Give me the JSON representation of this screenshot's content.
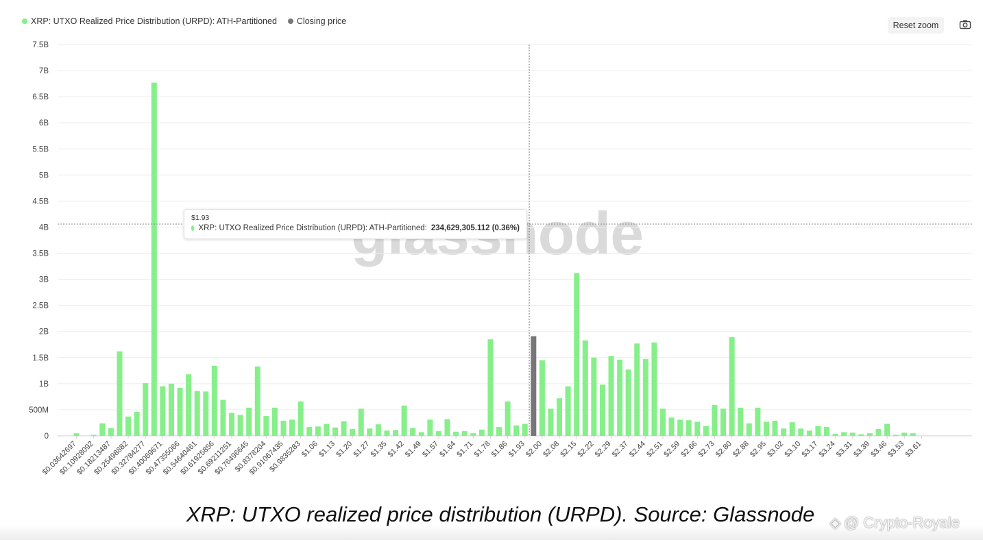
{
  "legend": [
    {
      "label": "XRP: UTXO Realized Price Distribution (URPD): ATH-Partitioned",
      "color": "#86ef8a"
    },
    {
      "label": "Closing price",
      "color": "#777777"
    }
  ],
  "toolbar": {
    "reset_zoom_label": "Reset zoom",
    "camera_icon": "camera-icon"
  },
  "tooltip": {
    "title": "$1.93",
    "series_label": "XRP: UTXO Realized Price Distribution (URPD): ATH-Partitioned:",
    "value": "234,629,305.112 (0.36%)"
  },
  "watermark": "glassnode",
  "caption": "XRP: UTXO realized price distribution (URPD). Source: Glassnode",
  "credit": "@ Crypto-Royale",
  "chart_data": {
    "type": "bar",
    "ylim": [
      0,
      7500000000
    ],
    "ytick_labels": [
      "0",
      "500M",
      "1B",
      "1.5B",
      "2B",
      "2.5B",
      "3B",
      "3.5B",
      "4B",
      "4.5B",
      "5B",
      "5.5B",
      "6B",
      "6.5B",
      "7B",
      "7.5B"
    ],
    "xtick_labels": [
      "$0.03642697",
      "$0.10928092",
      "$0.18213487",
      "$0.25498882",
      "$0.32784277",
      "$0.40069671",
      "$0.47355066",
      "$0.54640461",
      "$0.61925856",
      "$0.69211251",
      "$0.76496645",
      "$0.8378204",
      "$0.91067435",
      "$0.9835283",
      "$1.06",
      "$1.13",
      "$1.20",
      "$1.27",
      "$1.35",
      "$1.42",
      "$1.49",
      "$1.57",
      "$1.64",
      "$1.71",
      "$1.78",
      "$1.86",
      "$1.93",
      "$2.00",
      "$2.08",
      "$2.15",
      "$2.22",
      "$2.29",
      "$2.37",
      "$2.44",
      "$2.51",
      "$2.59",
      "$2.66",
      "$2.73",
      "$2.80",
      "$2.88",
      "$2.95",
      "$3.02",
      "$3.10",
      "$3.17",
      "$3.24",
      "$3.31",
      "$3.39",
      "$3.46",
      "$3.53",
      "$3.61"
    ],
    "xtick_start_index": 1,
    "xtick_step": 2,
    "series": [
      {
        "name": "XRP: UTXO Realized Price Distribution (URPD): ATH-Partitioned",
        "color": "#86ef8a",
        "values": [
          0,
          0.05,
          0,
          0.02,
          0.24,
          0.15,
          1.62,
          0.37,
          0.46,
          1.01,
          6.77,
          0.95,
          1.0,
          0.92,
          1.18,
          0.86,
          0.85,
          1.34,
          0.69,
          0.44,
          0.4,
          0.54,
          1.33,
          0.38,
          0.54,
          0.29,
          0.31,
          0.66,
          0.17,
          0.18,
          0.23,
          0.16,
          0.28,
          0.13,
          0.52,
          0.14,
          0.22,
          0.1,
          0.11,
          0.58,
          0.15,
          0.07,
          0.31,
          0.09,
          0.32,
          0.08,
          0.09,
          0.05,
          0.12,
          1.85,
          0.17,
          0.66,
          0.2,
          0.23,
          1.91,
          1.45,
          0.52,
          0.72,
          0.95,
          3.12,
          1.83,
          1.5,
          0.98,
          1.53,
          1.46,
          1.27,
          1.77,
          1.47,
          1.79,
          0.52,
          0.35,
          0.31,
          0.3,
          0.27,
          0.19,
          0.59,
          0.52,
          1.89,
          0.54,
          0.24,
          0.54,
          0.27,
          0.29,
          0.14,
          0.26,
          0.14,
          0.1,
          0.19,
          0.17,
          0.04,
          0.07,
          0.06,
          0.03,
          0.05,
          0.13,
          0.23,
          0.02,
          0.06,
          0.05
        ],
        "value_unit": "billion XRP"
      }
    ],
    "closing_price_bar_index": 54,
    "closing_price_color": "#777777",
    "hover_index": 53,
    "hover_value": 234629305.112
  }
}
